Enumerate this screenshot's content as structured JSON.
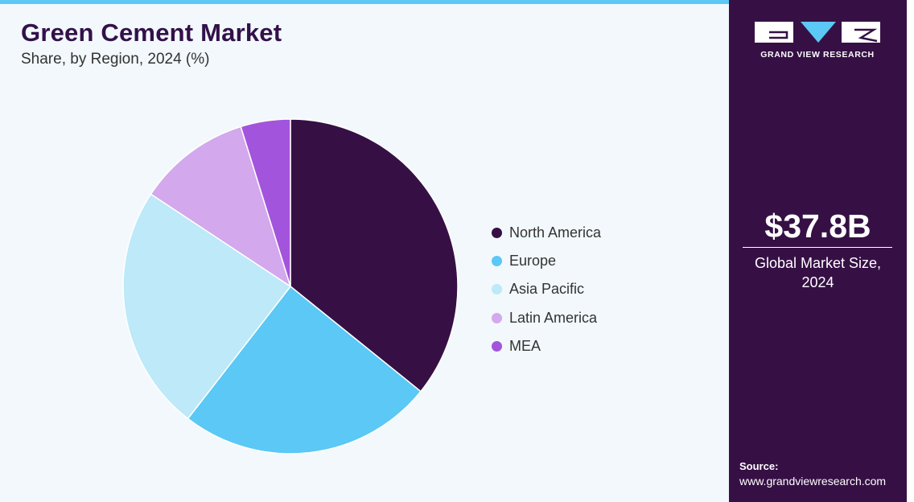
{
  "header": {
    "title": "Green Cement Market",
    "subtitle": "Share, by Region, 2024 (%)"
  },
  "chart_data": {
    "type": "pie",
    "title": "Green Cement Market",
    "subtitle": "Share, by Region, 2024 (%)",
    "categories": [
      "North America",
      "Europe",
      "Asia Pacific",
      "Latin America",
      "MEA"
    ],
    "values": [
      35.8,
      24.7,
      23.8,
      10.9,
      4.8
    ],
    "colors": [
      "#361045",
      "#5bc8f5",
      "#bde9f8",
      "#d3a8ec",
      "#a354dc"
    ],
    "legend_position": "right"
  },
  "sidebar": {
    "logo_text": "GRAND VIEW RESEARCH",
    "market_value": "$37.8B",
    "market_label_line1": "Global Market Size,",
    "market_label_line2": "2024",
    "source_label": "Source:",
    "source_url": "www.grandviewresearch.com"
  }
}
